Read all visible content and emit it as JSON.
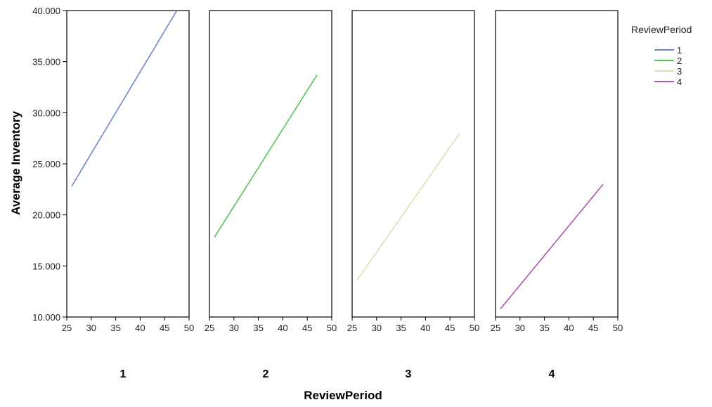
{
  "chart_data": {
    "type": "line",
    "xlabel": "ReviewPeriod",
    "ylabel": "Average Inventory",
    "legend_title": "ReviewPeriod",
    "legend_position": "top-right",
    "grid": false,
    "ylim": [
      10000,
      40000
    ],
    "xlim": [
      25,
      50
    ],
    "x_ticks": [
      "25",
      "30",
      "35",
      "40",
      "45",
      "50"
    ],
    "y_ticks": [
      "10.000",
      "15.000",
      "20.000",
      "25.000",
      "30.000",
      "35.000",
      "40.000"
    ],
    "panels": [
      {
        "label": "1",
        "series": "1",
        "color": "#6f86c8",
        "x": [
          26,
          47.5
        ],
        "y": [
          22800,
          40000
        ]
      },
      {
        "label": "2",
        "series": "2",
        "color": "#55c455",
        "x": [
          26,
          47
        ],
        "y": [
          17800,
          33700
        ]
      },
      {
        "label": "3",
        "series": "3",
        "color": "#e4dcb4",
        "x": [
          26,
          47
        ],
        "y": [
          13600,
          28000
        ]
      },
      {
        "label": "4",
        "series": "4",
        "color": "#a758a8",
        "x": [
          26,
          47
        ],
        "y": [
          10800,
          23000
        ]
      }
    ],
    "legend": [
      {
        "label": "1",
        "color": "#6f86c8"
      },
      {
        "label": "2",
        "color": "#55c455"
      },
      {
        "label": "3",
        "color": "#e4dcb4"
      },
      {
        "label": "4",
        "color": "#a758a8"
      }
    ]
  }
}
